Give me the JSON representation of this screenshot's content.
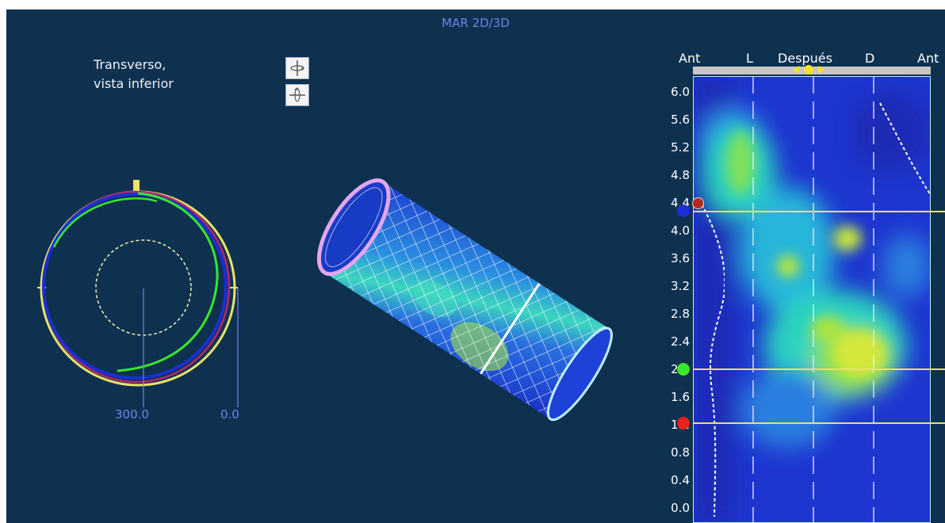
{
  "window": {
    "title": "MAR 2D/3D"
  },
  "left_panel": {
    "view_label_line1": "Transverso,",
    "view_label_line2": "vista inferior",
    "scale_left": "300.0",
    "scale_right": "0.0"
  },
  "toolbar": {
    "rotate_vertical_icon": "rotate-vertical-icon",
    "rotate_horizontal_icon": "rotate-horizontal-icon"
  },
  "map": {
    "headers": [
      "Ant",
      "L",
      "Después",
      "D",
      "Ant"
    ],
    "y_ticks": [
      "6.0",
      "5.6",
      "5.2",
      "4.8",
      "4.4",
      "4.0",
      "3.6",
      "3.2",
      "2.8",
      "2.4",
      "2.0",
      "1.6",
      "1.2",
      "0.8",
      "0.4",
      "0.0"
    ],
    "markers": {
      "upper_blue": 4.3,
      "middle_green": 2.0,
      "lower_red": 1.2
    }
  },
  "colors": {
    "background": "#0e3150",
    "accent": "#6f83e6",
    "marker_blue": "#1a2fd6",
    "marker_green": "#39e62c",
    "marker_red": "#e8231b",
    "marker_dark_red": "#b0281c",
    "line_yellow": "#e8e36a"
  }
}
